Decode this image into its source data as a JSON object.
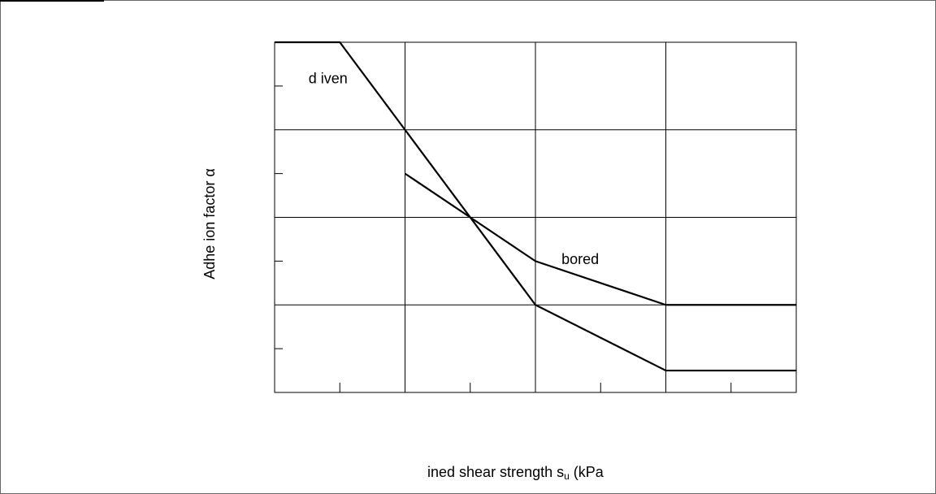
{
  "chart_data": {
    "type": "line",
    "xlabel": "ined shear strength s",
    "xlabel_sub": "u",
    "xlabel_tail": " (kPa",
    "ylabel": "Adhe  ion factor α",
    "xlim": [
      0,
      200
    ],
    "ylim": [
      0,
      1.2
    ],
    "grid": true,
    "series": [
      {
        "name": "d iven",
        "x": [
          0,
          25,
          50,
          100,
          150,
          200
        ],
        "y": [
          1.2,
          1.2,
          0.9,
          0.3,
          0.075,
          0.075
        ]
      },
      {
        "name": "bored",
        "x": [
          50,
          75,
          100,
          150,
          200
        ],
        "y": [
          0.75,
          0.6,
          0.45,
          0.3,
          0.3
        ]
      }
    ],
    "annotations": [
      "d iven",
      "bored"
    ]
  },
  "colors": {
    "line": "#000000",
    "grid": "#000000",
    "frame": "#666666"
  }
}
